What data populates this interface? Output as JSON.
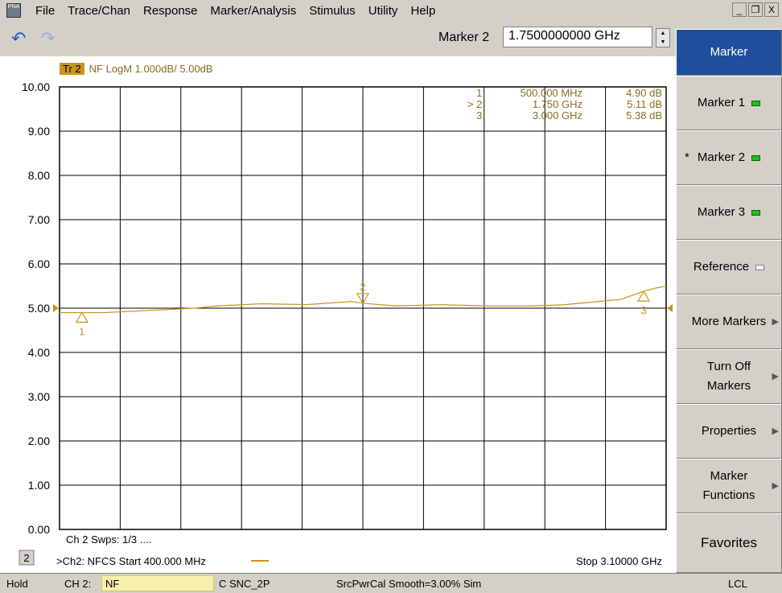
{
  "menu": {
    "items": [
      "File",
      "Trace/Chan",
      "Response",
      "Marker/Analysis",
      "Stimulus",
      "Utility",
      "Help"
    ],
    "app_icon_text": "PNA"
  },
  "window_buttons": [
    "_",
    "ł",
    "X"
  ],
  "toolbar": {
    "marker_label": "Marker 2",
    "marker_value": "1.7500000000 GHz"
  },
  "trace": {
    "tag": "Tr 2",
    "desc": "NF LogM 1.000dB/ 5.00dB"
  },
  "marker_table": [
    {
      "id": "1:",
      "freq": "500.000 MHz",
      "value": "4.90 dB"
    },
    {
      "id": "> 2:",
      "freq": "1.750 GHz",
      "value": "5.11 dB"
    },
    {
      "id": "3:",
      "freq": "3.000 GHz",
      "value": "5.38 dB"
    }
  ],
  "footer": {
    "channel_label": "2",
    "sweeps": "Ch 2  Swps: 1/3 ....",
    "start": ">Ch2: NFCS  Start  400.000 MHz",
    "stop": "Stop  3.10000 GHz"
  },
  "softkeys": {
    "title": "Marker",
    "m1": "Marker 1",
    "m2_star": "*",
    "m2": "Marker 2",
    "m3": "Marker 3",
    "reference": "Reference",
    "more": "More Markers",
    "turnoff_1": "Turn Off",
    "turnoff_2": "Markers",
    "properties": "Properties",
    "funcs_1": "Marker",
    "funcs_2": "Functions",
    "favorites": "Favorites"
  },
  "status": {
    "hold": "Hold",
    "ch": "CH 2:",
    "nf": "NF",
    "c": "C  SNC_2P",
    "src": "SrcPwrCal Smooth=3.00% Sim",
    "lcl": "LCL"
  },
  "colors": {
    "trace": "#c8961e",
    "plot_bg": "#ffffff",
    "softkey_title": "#1f4e9c",
    "led_on": "#1ec01e"
  },
  "chart_data": {
    "type": "line",
    "xlim": [
      400000000,
      3100000000
    ],
    "ylim": [
      0,
      10
    ],
    "yticks": [
      "0.00",
      "1.00",
      "2.00",
      "3.00",
      "4.00",
      "5.00",
      "6.00",
      "7.00",
      "8.00",
      "9.00",
      "10.00"
    ],
    "x_divisions": 10,
    "reference_level": 5.0,
    "series": [
      {
        "x": [
          400000000,
          600000000,
          800000000,
          1000000000,
          1100000000,
          1300000000,
          1500000000,
          1700000000,
          1750000000,
          1900000000,
          2100000000,
          2300000000,
          2500000000,
          2650000000,
          2800000000,
          2900000000,
          3000000000,
          3050000000,
          3100000000
        ],
        "y": [
          4.9,
          4.9,
          4.95,
          5.0,
          5.05,
          5.1,
          5.08,
          5.15,
          5.11,
          5.05,
          5.08,
          5.05,
          5.05,
          5.08,
          5.15,
          5.2,
          5.38,
          5.45,
          5.5
        ]
      }
    ],
    "markers": [
      {
        "label": "1",
        "x": 500000000,
        "y": 4.9
      },
      {
        "label": "2",
        "x": 1750000000,
        "y": 5.11
      },
      {
        "label": "3",
        "x": 3000000000,
        "y": 5.38
      }
    ]
  }
}
